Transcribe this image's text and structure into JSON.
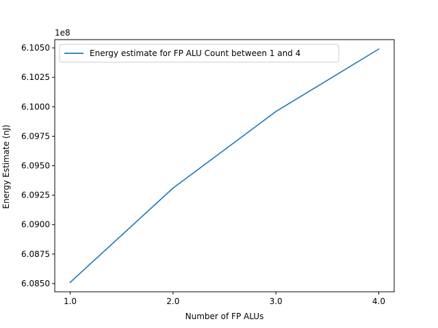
{
  "chart_data": {
    "type": "line",
    "title": "",
    "xlabel": "Number of FP ALUs",
    "ylabel": "Energy Estimate (nJ)",
    "y_offset_text": "1e8",
    "xlim": [
      0.85,
      4.15
    ],
    "ylim": [
      6.0843,
      6.1057
    ],
    "x_ticks": [
      1.0,
      2.0,
      3.0,
      4.0
    ],
    "x_tick_labels": [
      "1.0",
      "2.0",
      "3.0",
      "4.0"
    ],
    "y_ticks": [
      6.085,
      6.0875,
      6.09,
      6.0925,
      6.095,
      6.0975,
      6.1,
      6.1025,
      6.105
    ],
    "y_tick_labels": [
      "6.0850",
      "6.0875",
      "6.0900",
      "6.0925",
      "6.0950",
      "6.0975",
      "6.1000",
      "6.1025",
      "6.1050"
    ],
    "grid": false,
    "legend_position": "top-left",
    "series": [
      {
        "name": "Energy estimate for FP ALU Count between 1 and 4",
        "color": "#1f77b4",
        "x": [
          1.0,
          2.0,
          3.0,
          4.0
        ],
        "y": [
          6.0851,
          6.0931,
          6.0996,
          6.1049
        ]
      }
    ]
  }
}
